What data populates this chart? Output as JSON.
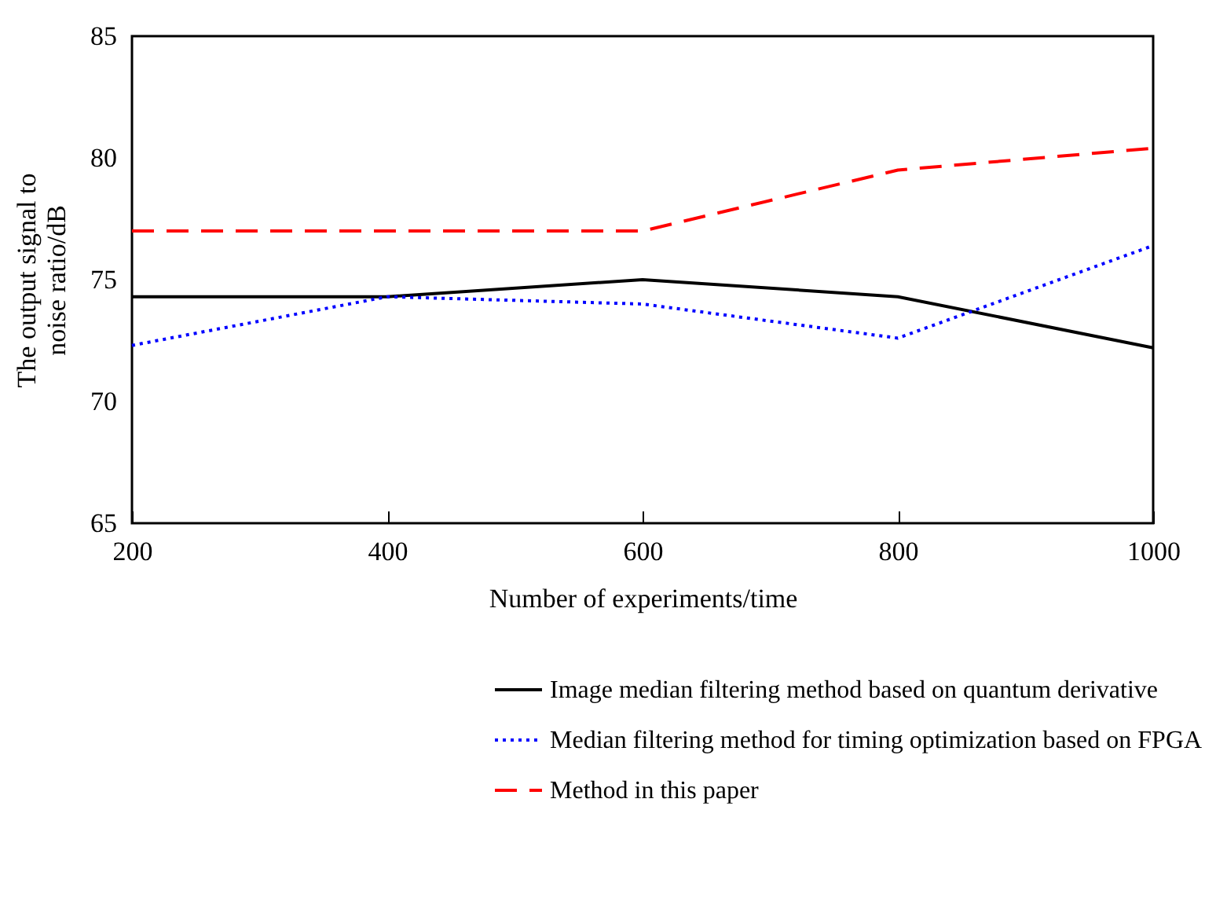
{
  "chart_data": {
    "type": "line",
    "xlabel": "Number of experiments/time",
    "ylabel": "The output signal to noise ratio/dB",
    "x": [
      200,
      400,
      600,
      800,
      1000
    ],
    "xlim": [
      200,
      1000
    ],
    "xticks": [
      200,
      400,
      600,
      800,
      1000
    ],
    "ylim": [
      65,
      85
    ],
    "yticks": [
      65,
      70,
      75,
      80,
      85
    ],
    "grid": false,
    "legend": "bottom right",
    "marker": "none",
    "series": [
      {
        "name": "Image median filtering method based on quantum derivative",
        "color": "#000000",
        "line_style": "solid",
        "values": [
          74.3,
          74.3,
          75.0,
          74.3,
          72.2
        ]
      },
      {
        "name": "Median filtering method for timing optimization based on FPGA",
        "color": "#0000ff",
        "line_style": "dotted",
        "values": [
          72.3,
          74.3,
          74.0,
          72.6,
          76.4
        ]
      },
      {
        "name": "Method in this paper",
        "color": "#ff0000",
        "line_style": "dashed",
        "values": [
          77.0,
          77.0,
          77.0,
          79.5,
          80.4
        ]
      }
    ]
  }
}
